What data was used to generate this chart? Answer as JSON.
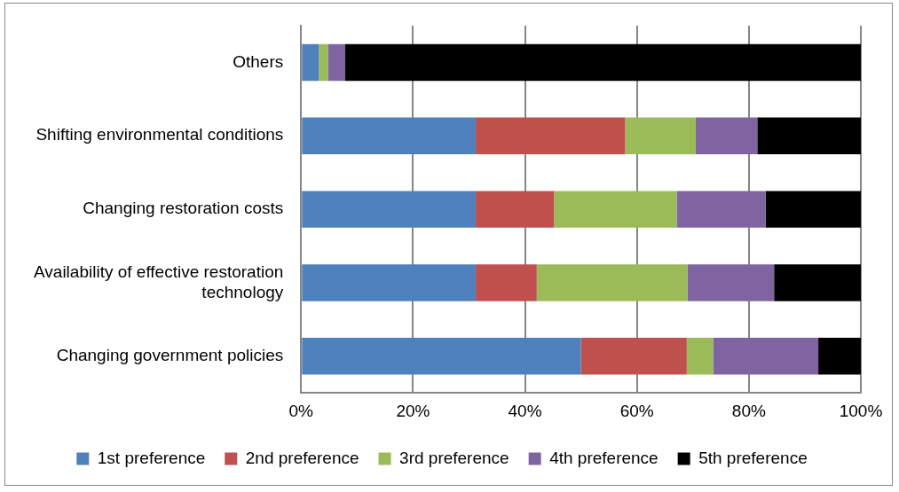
{
  "chart_data": {
    "type": "bar",
    "orientation": "horizontal",
    "stacked": true,
    "categories": [
      "Others",
      "Shifting environmental conditions",
      "Changing restoration costs",
      "Availability of effective restoration technology",
      "Changing government policies"
    ],
    "series": [
      {
        "name": "1st preference",
        "color": "#4f81bd",
        "values": [
          3.2,
          31.2,
          31.2,
          31.2,
          50.0
        ]
      },
      {
        "name": "2nd preference",
        "color": "#c0504d",
        "values": [
          0,
          26.7,
          14.0,
          10.9,
          18.9
        ]
      },
      {
        "name": "3rd preference",
        "color": "#9bbb59",
        "values": [
          1.6,
          12.6,
          21.9,
          26.9,
          4.7
        ]
      },
      {
        "name": "4th preference",
        "color": "#8064a2",
        "values": [
          3.0,
          11.0,
          15.9,
          15.5,
          18.8
        ]
      },
      {
        "name": "5th preference",
        "color": "#000000",
        "values": [
          92.2,
          18.5,
          17.0,
          15.5,
          7.6
        ]
      }
    ],
    "xlim": [
      0,
      100
    ],
    "xticks": [
      {
        "value": 0,
        "label": "0%"
      },
      {
        "value": 20,
        "label": "20%"
      },
      {
        "value": 40,
        "label": "40%"
      },
      {
        "value": 60,
        "label": "60%"
      },
      {
        "value": 80,
        "label": "80%"
      },
      {
        "value": 100,
        "label": "100%"
      }
    ],
    "grid": "x",
    "legend": "bottom"
  }
}
